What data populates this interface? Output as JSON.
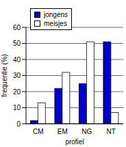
{
  "chart_data": {
    "type": "bar",
    "categories": [
      "CM",
      "EM",
      "NG",
      "NT"
    ],
    "series": [
      {
        "name": "jongens",
        "color": "#0000cc",
        "values": [
          2,
          22,
          25,
          51
        ]
      },
      {
        "name": "meisjes",
        "color": "#ffffff",
        "values": [
          13,
          32,
          51,
          7
        ]
      }
    ],
    "x_label": "profiel",
    "y_label": "frequentie (%)",
    "ylim": [
      0,
      60
    ],
    "yticks": [
      0,
      10,
      20,
      30,
      40,
      50,
      60
    ],
    "grid": true,
    "legend": "upper left"
  }
}
